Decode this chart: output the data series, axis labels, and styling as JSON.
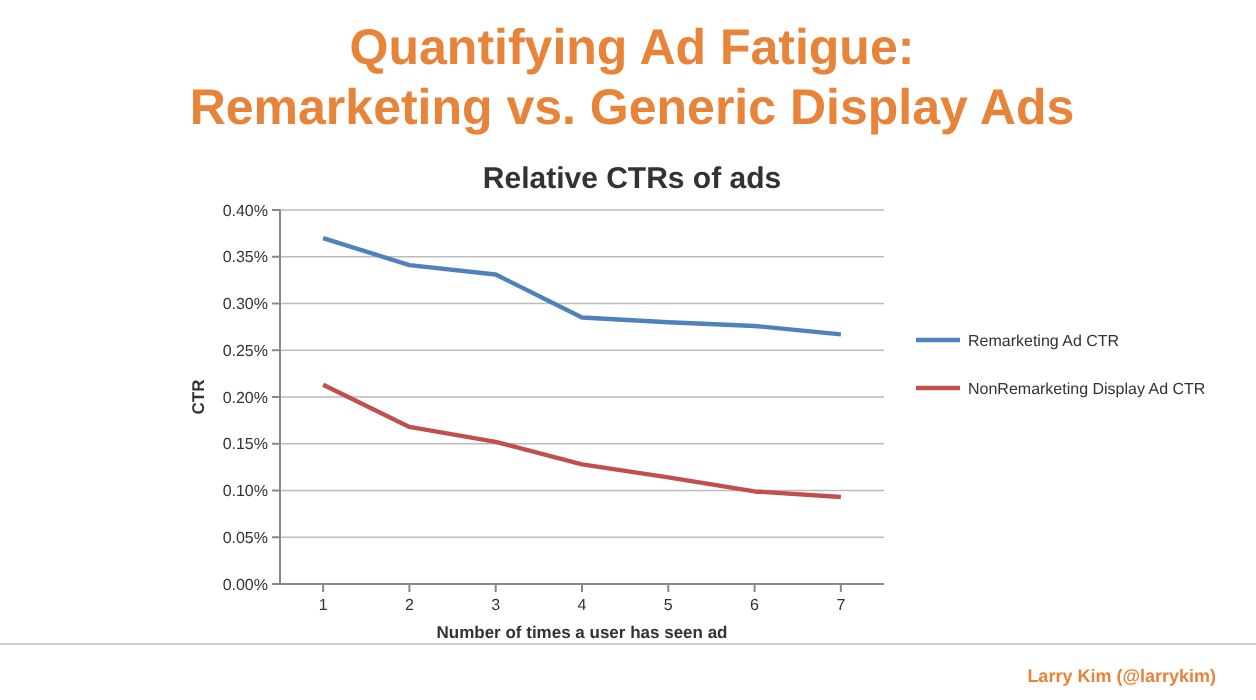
{
  "chart_data": {
    "type": "line",
    "title": "Quantifying Ad Fatigue:\nRemarketing vs. Generic Display Ads",
    "subtitle": "Relative CTRs of ads",
    "xlabel": "Number of times a user has seen ad",
    "ylabel": "CTR",
    "x": [
      1,
      2,
      3,
      4,
      5,
      6,
      7
    ],
    "xlim": [
      0.5,
      7.5
    ],
    "xticks": [
      1,
      2,
      3,
      4,
      5,
      6,
      7
    ],
    "ylim": [
      0,
      0.4
    ],
    "yticks": [
      {
        "value": 0,
        "label": "0.00%"
      },
      {
        "value": 0.05,
        "label": "0.05%"
      },
      {
        "value": 0.1,
        "label": "0.10%"
      },
      {
        "value": 0.15,
        "label": "0.15%"
      },
      {
        "value": 0.2,
        "label": "0.20%"
      },
      {
        "value": 0.25,
        "label": "0.25%"
      },
      {
        "value": 0.3,
        "label": "0.30%"
      },
      {
        "value": 0.35,
        "label": "0.35%"
      },
      {
        "value": 0.4,
        "label": "0.40%"
      }
    ],
    "series": [
      {
        "name": "Remarketing Ad CTR",
        "color": "#4f81bd",
        "values": [
          0.37,
          0.341,
          0.331,
          0.285,
          0.28,
          0.276,
          0.267
        ]
      },
      {
        "name": "NonRemarketing Display Ad CTR",
        "color": "#c0504d",
        "values": [
          0.213,
          0.168,
          0.152,
          0.128,
          0.114,
          0.099,
          0.093
        ]
      }
    ],
    "grid": "y",
    "legend": "right",
    "marker": "none",
    "line_style": "solid",
    "annotations": [
      "Larry Kim (@larrykim)"
    ]
  }
}
